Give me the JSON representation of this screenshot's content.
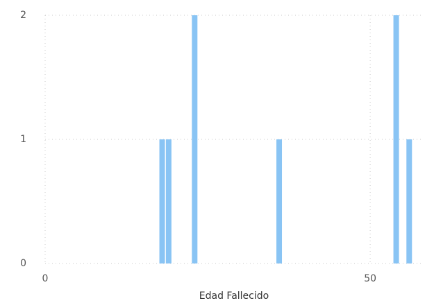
{
  "chart_data": {
    "type": "bar",
    "xlabel": "Edad Fallecido",
    "x": [
      18,
      19,
      23,
      36,
      54,
      56
    ],
    "values": [
      1,
      1,
      2,
      1,
      2,
      1
    ],
    "color": "#89c4f4",
    "xlim": [
      0,
      58
    ],
    "xticks": [
      0,
      50
    ],
    "ylim": [
      0,
      2
    ],
    "yticks": [
      0,
      1,
      2
    ],
    "grid": true
  }
}
